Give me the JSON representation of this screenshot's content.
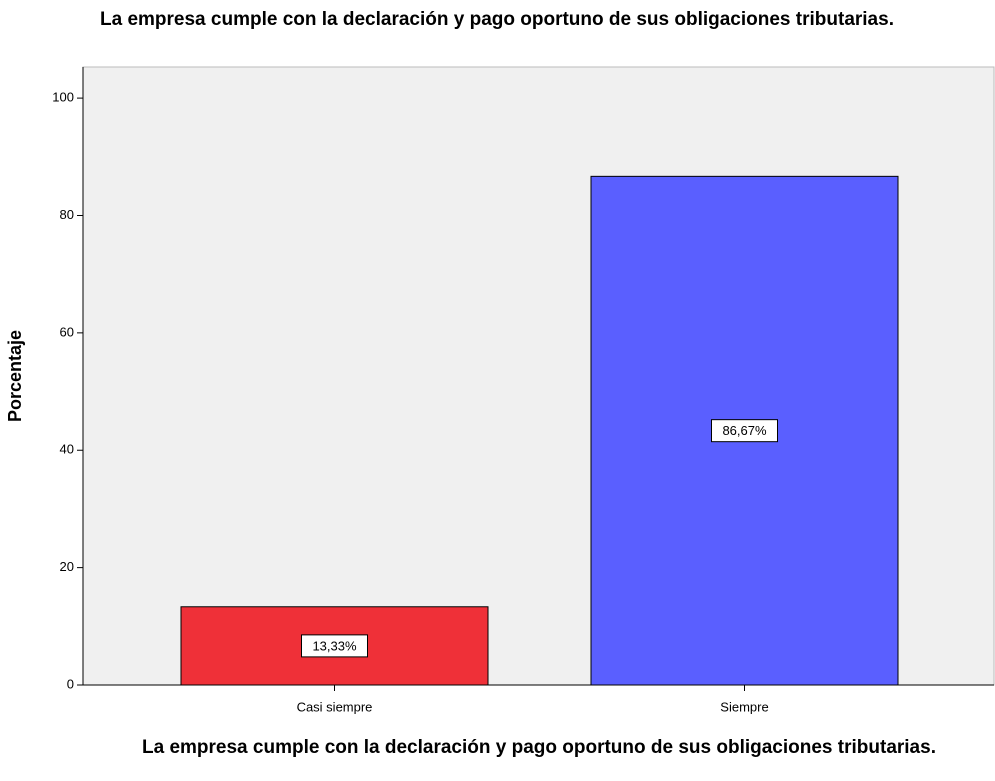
{
  "chart_data": {
    "type": "bar",
    "title": "La empresa cumple con la declaración y pago oportuno de sus obligaciones tributarias.",
    "x_label": "La empresa cumple con la declaración y pago oportuno de sus obligaciones tributarias.",
    "y_label": "Porcentaje",
    "categories": [
      "Casi siempre",
      "Siempre"
    ],
    "values": [
      13.33,
      86.67
    ],
    "value_labels": [
      "13,33%",
      "86,67%"
    ],
    "colors": [
      "#ef3038",
      "#5a5fff"
    ],
    "ylim": [
      0,
      105.3
    ],
    "yticks": [
      0,
      20,
      40,
      60,
      80,
      100
    ]
  }
}
